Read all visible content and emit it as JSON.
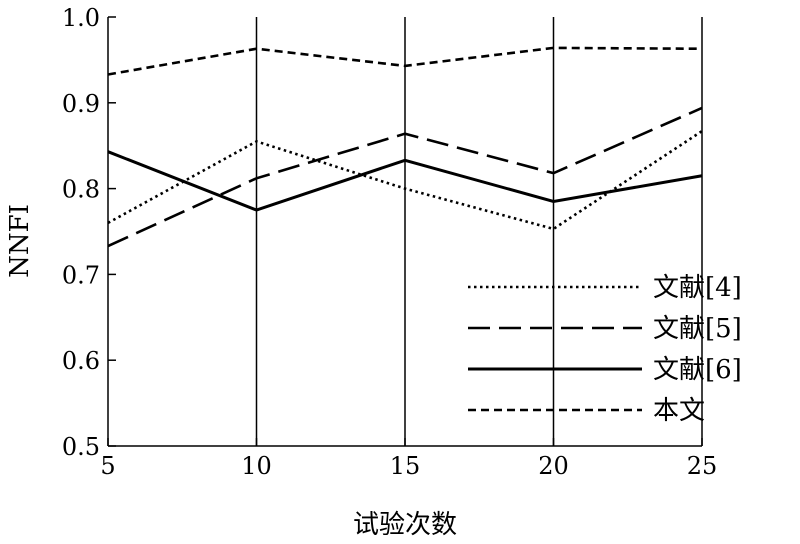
{
  "chart_data": {
    "type": "line",
    "xlabel": "试验次数",
    "ylabel": "NNFI",
    "x": [
      5,
      10,
      15,
      20,
      25
    ],
    "xlim": [
      5,
      25
    ],
    "ylim": [
      0.5,
      1.0
    ],
    "x_ticks": [
      "5",
      "10",
      "15",
      "20",
      "25"
    ],
    "y_ticks": [
      "0.5",
      "0.6",
      "0.7",
      "0.8",
      "0.9",
      "1.0"
    ],
    "grid": "vertical lines at x ticks",
    "legend_position": "bottom-right",
    "series": [
      {
        "name": "文献[4]",
        "style": "dotted",
        "values": [
          0.76,
          0.855,
          0.8,
          0.753,
          0.867
        ]
      },
      {
        "name": "文献[5]",
        "style": "long-dash",
        "values": [
          0.733,
          0.812,
          0.864,
          0.818,
          0.894
        ]
      },
      {
        "name": "文献[6]",
        "style": "solid",
        "values": [
          0.843,
          0.775,
          0.833,
          0.785,
          0.815
        ]
      },
      {
        "name": "本文",
        "style": "short-dash",
        "values": [
          0.933,
          0.963,
          0.943,
          0.964,
          0.963
        ]
      }
    ]
  }
}
